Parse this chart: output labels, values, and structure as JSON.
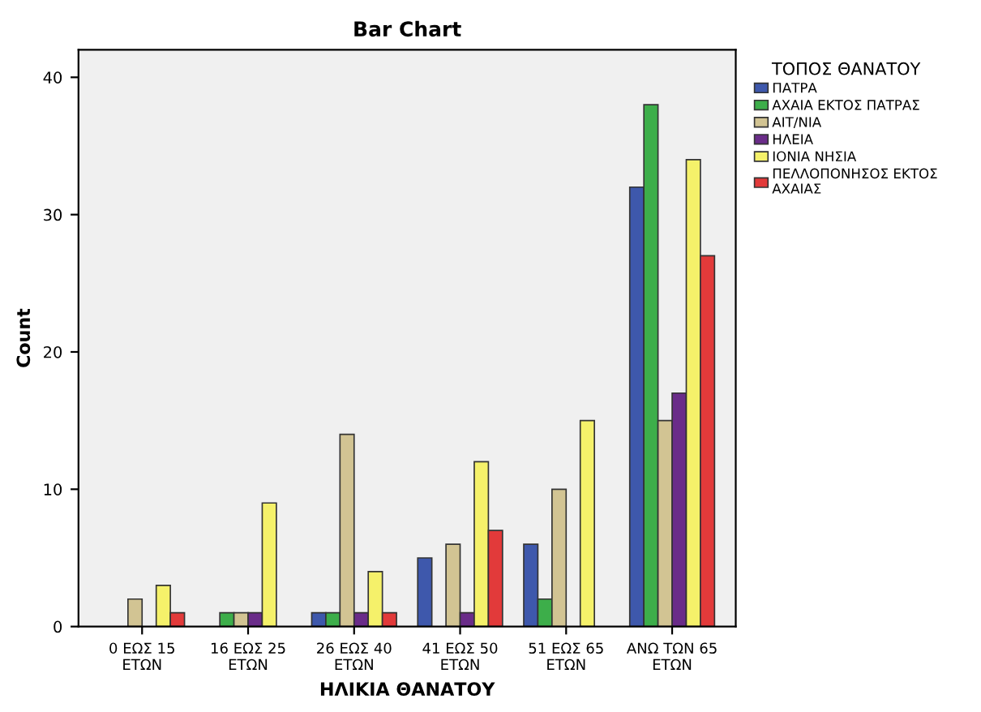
{
  "chart_data": {
    "type": "bar",
    "title": "Bar Chart",
    "xlabel": "ΗΛΙΚΙΑ ΘΑΝΑΤΟΥ",
    "ylabel": "Count",
    "legend_title": "ΤΟΠΟΣ ΘΑΝΑΤΟΥ",
    "categories": [
      "0 ΕΩΣ 15\nΕΤΩΝ",
      "16 ΕΩΣ 25\nΕΤΩΝ",
      "26 ΕΩΣ 40\nΕΤΩΝ",
      "41 ΕΩΣ 50\nΕΤΩΝ",
      "51 ΕΩΣ 65\nΕΤΩΝ",
      "ΑΝΩ ΤΩΝ 65\nΕΤΩΝ"
    ],
    "series": [
      {
        "name": "ΠΑΤΡΑ",
        "color": "#3e58ac",
        "values": [
          null,
          null,
          1,
          5,
          6,
          32
        ]
      },
      {
        "name": "ΑΧΑΙΑ ΕΚΤΟΣ ΠΑΤΡΑΣ",
        "color": "#3dae4a",
        "values": [
          null,
          1,
          1,
          null,
          2,
          38
        ]
      },
      {
        "name": "ΑΙΤ/ΝΙΑ",
        "color": "#d2c493",
        "values": [
          2,
          1,
          14,
          6,
          10,
          15
        ]
      },
      {
        "name": "ΗΛΕΙΑ",
        "color": "#6a2c89",
        "values": [
          null,
          1,
          1,
          1,
          null,
          17
        ]
      },
      {
        "name": "ΙΟΝΙΑ ΝΗΣΙΑ",
        "color": "#f5f16a",
        "values": [
          3,
          9,
          4,
          12,
          15,
          34
        ]
      },
      {
        "name": "ΠΕΛΛΟΠΟΝΗΣΟΣ ΕΚΤΟΣ\nΑΧΑΙΑΣ",
        "color": "#e23a3a",
        "values": [
          1,
          null,
          1,
          7,
          null,
          27
        ]
      }
    ],
    "ylim": [
      0,
      42
    ],
    "yticks": [
      0,
      10,
      20,
      30,
      40
    ],
    "grid": false,
    "legend": "right"
  }
}
